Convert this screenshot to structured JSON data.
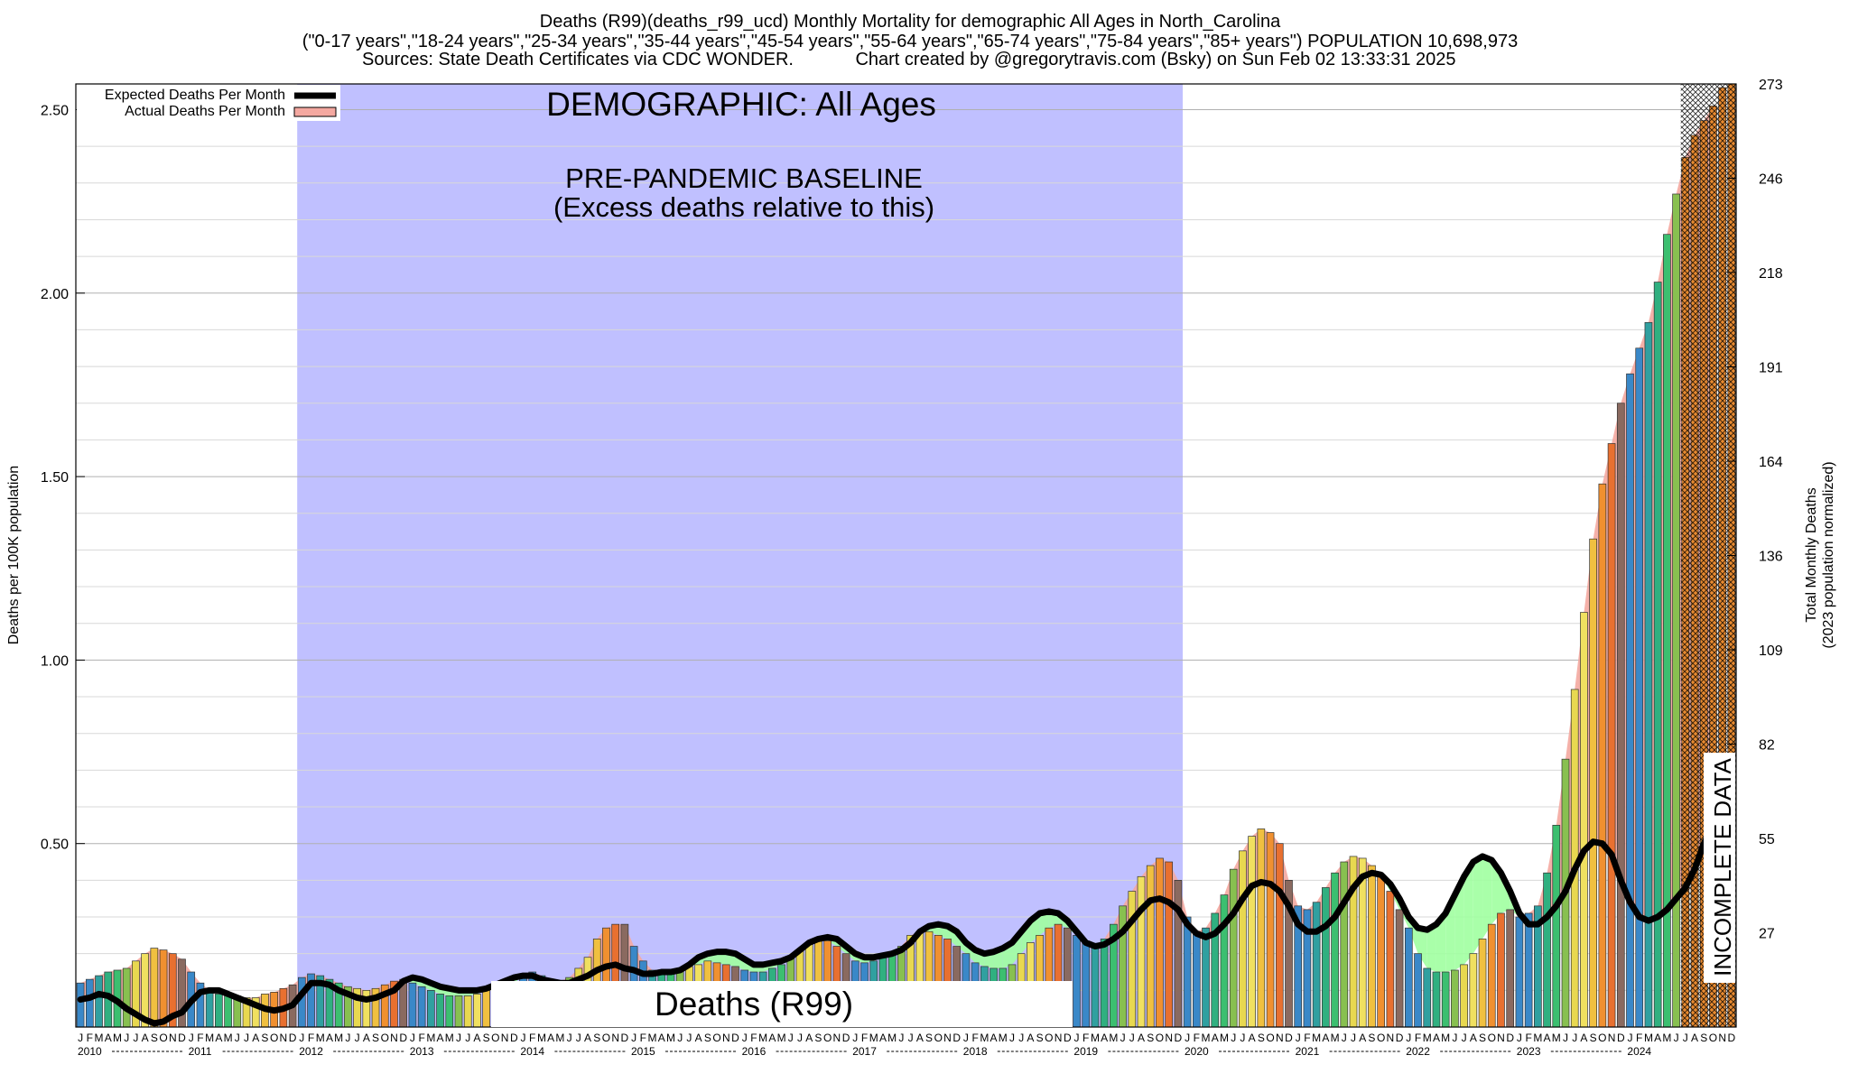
{
  "header": {
    "line1": "Deaths (R99)(deaths_r99_ucd) Monthly Mortality for demographic All Ages in North_Carolina",
    "line2": "(\"0-17 years\",\"18-24 years\",\"25-34 years\",\"35-44 years\",\"45-54 years\",\"55-64 years\",\"65-74 years\",\"75-84 years\",\"85+ years\") POPULATION 10,698,973",
    "line3_left": "Sources: State Death Certificates via CDC WONDER.",
    "line3_right": "Chart created by @gregorytravis.com (Bsky) on Sun Feb 02 13:33:31 2025"
  },
  "annotations": {
    "demographic": "DEMOGRAPHIC: All Ages",
    "baseline_line1": "PRE-PANDEMIC BASELINE",
    "baseline_line2": "(Excess deaths relative to this)",
    "cause_box": "Deaths (R99)",
    "incomplete": "INCOMPLETE DATA"
  },
  "colors": {
    "baseline_band": "#c0c0ff",
    "expected_line": "#000000",
    "actual_fill": "#f4a8a0",
    "below_fill": "#a0ffa0",
    "hatch": "#000000",
    "incomplete_bar": "#e88a30"
  },
  "chart_data": {
    "type": "bar",
    "ylabel": "Deaths per 100K population",
    "y2label_line1": "Total Monthly Deaths",
    "y2label_line2": "(2023 population normalized)",
    "ylim": [
      0,
      2.57
    ],
    "y_ticks": [
      "0.50",
      "1.00",
      "1.50",
      "2.00",
      "2.50"
    ],
    "y2_ticks": [
      "27",
      "55",
      "82",
      "109",
      "136",
      "164",
      "191",
      "218",
      "246",
      "273"
    ],
    "years": [
      "2010",
      "2011",
      "2012",
      "2013",
      "2014",
      "2015",
      "2016",
      "2017",
      "2018",
      "2019",
      "2020",
      "2021",
      "2022",
      "2023",
      "2024"
    ],
    "month_letters": [
      "J",
      "F",
      "M",
      "A",
      "M",
      "J",
      "J",
      "A",
      "S",
      "O",
      "N",
      "D"
    ],
    "baseline_period": [
      "2012-01",
      "2019-12"
    ],
    "incomplete_from": "2024-07",
    "legend": [
      {
        "label": "Expected Deaths Per Month"
      },
      {
        "label": "Actual Deaths Per Month"
      }
    ],
    "series": [
      {
        "name": "Actual Deaths Per Month",
        "values": [
          0.12,
          0.13,
          0.14,
          0.15,
          0.155,
          0.16,
          0.18,
          0.2,
          0.215,
          0.21,
          0.2,
          0.185,
          0.15,
          0.12,
          0.1,
          0.09,
          0.085,
          0.085,
          0.08,
          0.08,
          0.09,
          0.095,
          0.105,
          0.115,
          0.135,
          0.145,
          0.14,
          0.13,
          0.12,
          0.11,
          0.105,
          0.1,
          0.105,
          0.115,
          0.125,
          0.13,
          0.12,
          0.11,
          0.1,
          0.09,
          0.085,
          0.085,
          0.085,
          0.09,
          0.1,
          0.11,
          0.115,
          0.12,
          0.14,
          0.15,
          0.14,
          0.13,
          0.125,
          0.135,
          0.16,
          0.19,
          0.24,
          0.27,
          0.28,
          0.28,
          0.22,
          0.18,
          0.155,
          0.15,
          0.15,
          0.155,
          0.165,
          0.17,
          0.18,
          0.175,
          0.17,
          0.165,
          0.155,
          0.15,
          0.15,
          0.16,
          0.17,
          0.19,
          0.21,
          0.23,
          0.235,
          0.235,
          0.22,
          0.2,
          0.18,
          0.175,
          0.18,
          0.19,
          0.2,
          0.22,
          0.25,
          0.26,
          0.26,
          0.25,
          0.24,
          0.22,
          0.2,
          0.175,
          0.165,
          0.16,
          0.16,
          0.17,
          0.2,
          0.23,
          0.25,
          0.27,
          0.28,
          0.27,
          0.25,
          0.23,
          0.22,
          0.24,
          0.28,
          0.33,
          0.37,
          0.41,
          0.44,
          0.46,
          0.45,
          0.4,
          0.3,
          0.26,
          0.27,
          0.31,
          0.36,
          0.43,
          0.48,
          0.52,
          0.54,
          0.53,
          0.5,
          0.4,
          0.33,
          0.32,
          0.34,
          0.38,
          0.42,
          0.45,
          0.465,
          0.46,
          0.44,
          0.41,
          0.37,
          0.32,
          0.27,
          0.2,
          0.16,
          0.15,
          0.15,
          0.155,
          0.17,
          0.2,
          0.24,
          0.28,
          0.31,
          0.32,
          0.3,
          0.31,
          0.33,
          0.42,
          0.55,
          0.73,
          0.92,
          1.13,
          1.33,
          1.48,
          1.59,
          1.7,
          1.78,
          1.85,
          1.92,
          2.03,
          2.16,
          2.27,
          2.37,
          2.43,
          2.47,
          2.51,
          2.56,
          2.57
        ]
      },
      {
        "name": "Expected Deaths Per Month",
        "values": [
          0.075,
          0.08,
          0.09,
          0.085,
          0.07,
          0.05,
          0.035,
          0.02,
          0.01,
          0.015,
          0.03,
          0.04,
          0.07,
          0.095,
          0.1,
          0.1,
          0.09,
          0.08,
          0.07,
          0.06,
          0.05,
          0.045,
          0.05,
          0.06,
          0.09,
          0.12,
          0.12,
          0.115,
          0.1,
          0.09,
          0.08,
          0.075,
          0.08,
          0.09,
          0.1,
          0.125,
          0.135,
          0.13,
          0.12,
          0.11,
          0.105,
          0.1,
          0.1,
          0.1,
          0.105,
          0.115,
          0.125,
          0.135,
          0.14,
          0.14,
          0.13,
          0.125,
          0.12,
          0.12,
          0.13,
          0.14,
          0.155,
          0.165,
          0.17,
          0.16,
          0.155,
          0.145,
          0.145,
          0.15,
          0.15,
          0.155,
          0.17,
          0.19,
          0.2,
          0.205,
          0.205,
          0.2,
          0.185,
          0.17,
          0.17,
          0.175,
          0.18,
          0.19,
          0.21,
          0.23,
          0.24,
          0.245,
          0.24,
          0.22,
          0.2,
          0.19,
          0.19,
          0.195,
          0.2,
          0.21,
          0.23,
          0.26,
          0.275,
          0.28,
          0.275,
          0.26,
          0.23,
          0.21,
          0.2,
          0.205,
          0.215,
          0.23,
          0.26,
          0.29,
          0.31,
          0.315,
          0.31,
          0.29,
          0.26,
          0.23,
          0.22,
          0.225,
          0.24,
          0.26,
          0.29,
          0.32,
          0.345,
          0.35,
          0.34,
          0.32,
          0.28,
          0.255,
          0.245,
          0.255,
          0.28,
          0.31,
          0.35,
          0.385,
          0.395,
          0.39,
          0.37,
          0.33,
          0.28,
          0.26,
          0.26,
          0.275,
          0.3,
          0.34,
          0.38,
          0.41,
          0.42,
          0.415,
          0.39,
          0.35,
          0.3,
          0.27,
          0.265,
          0.28,
          0.31,
          0.36,
          0.41,
          0.45,
          0.465,
          0.455,
          0.42,
          0.37,
          0.31,
          0.28,
          0.28,
          0.3,
          0.33,
          0.37,
          0.43,
          0.48,
          0.505,
          0.5,
          0.47,
          0.4,
          0.34,
          0.3,
          0.29,
          0.3,
          0.32,
          0.35,
          0.38,
          0.43,
          0.5,
          0.55,
          null,
          null
        ]
      }
    ]
  }
}
